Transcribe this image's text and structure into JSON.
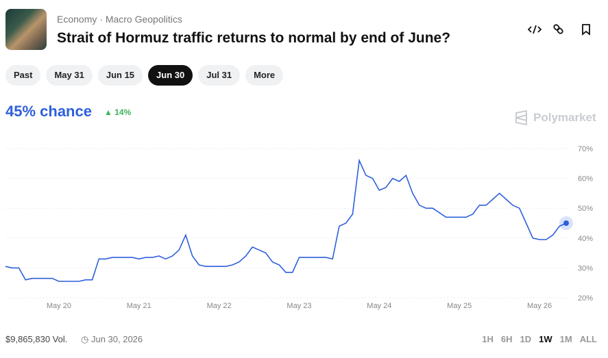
{
  "header": {
    "breadcrumb": [
      "Economy",
      "Macro Geopolitics"
    ],
    "title": "Strait of Hormuz traffic returns to normal by end of June?"
  },
  "tabs": [
    {
      "label": "Past",
      "selected": false
    },
    {
      "label": "May 31",
      "selected": false
    },
    {
      "label": "Jun 15",
      "selected": false
    },
    {
      "label": "Jun 30",
      "selected": true
    },
    {
      "label": "Jul 31",
      "selected": false
    },
    {
      "label": "More",
      "selected": false
    }
  ],
  "chance": "45% chance",
  "change": "14%",
  "brand": "Polymarket",
  "chart_data": {
    "type": "line",
    "color": "#2d5fdc",
    "grid": true,
    "categories": [
      null,
      null,
      null,
      null,
      null,
      null,
      null,
      null,
      "May 20",
      null,
      null,
      null,
      null,
      null,
      null,
      null,
      null,
      null,
      null,
      null,
      "May 21",
      null,
      null,
      null,
      null,
      null,
      null,
      null,
      null,
      null,
      null,
      null,
      "May 22",
      null,
      null,
      null,
      null,
      null,
      null,
      null,
      null,
      null,
      null,
      null,
      "May 23",
      null,
      null,
      null,
      null,
      null,
      null,
      null,
      null,
      null,
      null,
      null,
      "May 24",
      null,
      null,
      null,
      null,
      null,
      null,
      null,
      null,
      null,
      null,
      null,
      "May 25",
      null,
      null,
      null,
      null,
      null,
      null,
      null,
      null,
      null,
      null,
      null,
      "May 26",
      null,
      null,
      null,
      null
    ],
    "values": [
      30.5,
      30,
      30,
      26,
      26.5,
      26.5,
      26.5,
      26.5,
      25.5,
      25.5,
      25.5,
      25.5,
      26,
      26,
      33,
      33,
      33.5,
      33.5,
      33.5,
      33.5,
      33,
      33.5,
      33.5,
      34,
      33,
      34,
      36,
      41,
      34,
      31,
      30.5,
      30.5,
      30.5,
      30.5,
      31,
      32,
      34,
      37,
      36,
      35,
      32,
      31,
      28.5,
      28.5,
      33.5,
      33.5,
      33.5,
      33.5,
      33.5,
      33,
      44,
      45,
      48,
      66,
      61,
      60,
      56,
      57,
      60,
      59,
      61,
      55,
      51,
      50,
      50,
      48.5,
      47,
      47,
      47,
      47,
      48,
      51,
      51,
      53,
      55,
      53,
      51,
      50,
      45,
      40,
      39.5,
      39.5,
      41,
      44,
      45
    ],
    "ylim": [
      20,
      70
    ],
    "yticks": [
      {
        "value": 20,
        "label": "20%"
      },
      {
        "value": 30,
        "label": "30%"
      },
      {
        "value": 40,
        "label": "40%"
      },
      {
        "value": 50,
        "label": "50%"
      },
      {
        "value": 60,
        "label": "60%"
      },
      {
        "value": 70,
        "label": "70%"
      }
    ]
  },
  "footer": {
    "volume": "$9,865,830 Vol.",
    "end_date": "Jun 30, 2026",
    "ranges": [
      "1H",
      "6H",
      "1D",
      "1W",
      "1M",
      "ALL"
    ],
    "selected_range": "1W"
  }
}
